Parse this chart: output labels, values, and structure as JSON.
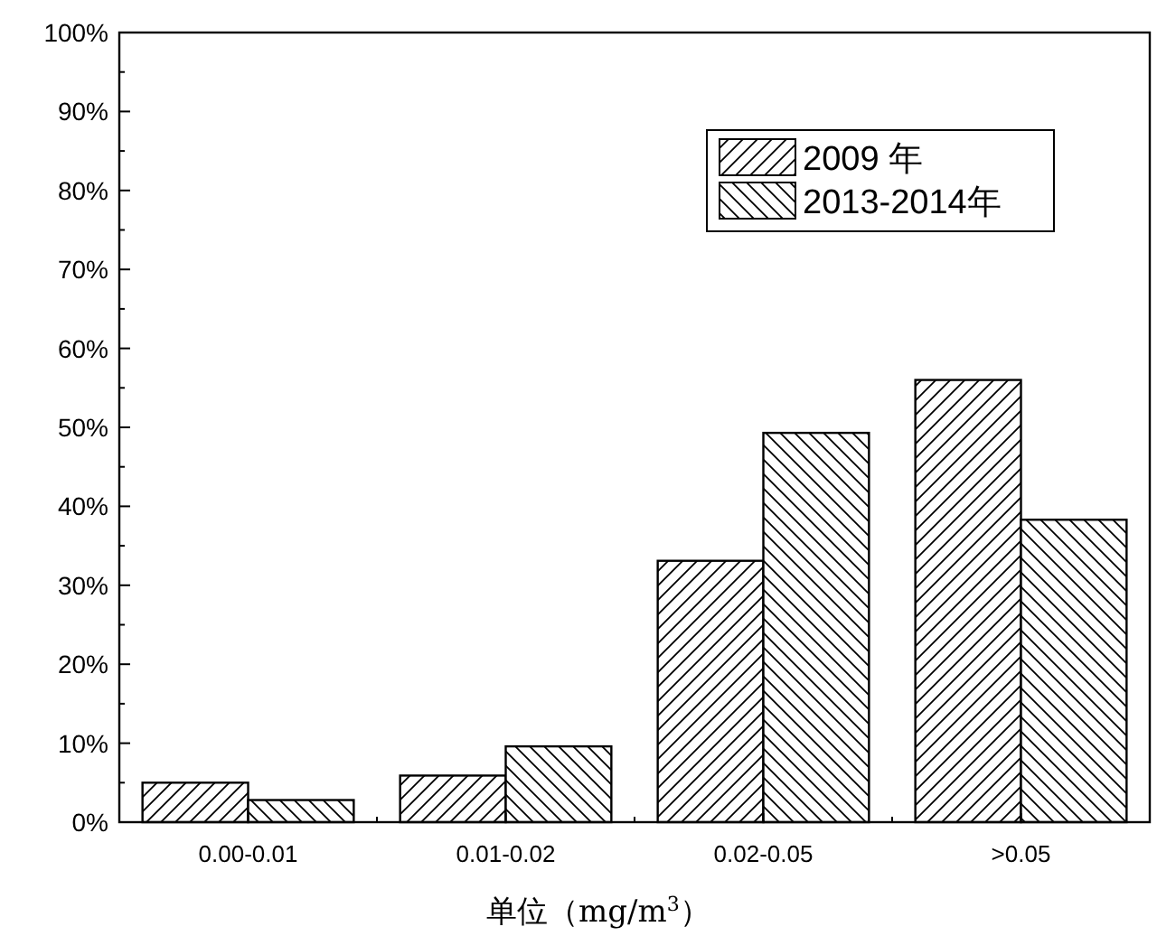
{
  "chart_data": {
    "type": "bar",
    "xlabel": "单位（mg/m$^{3}$）",
    "categories": [
      "0.00-0.01",
      "0.01-0.02",
      "0.02-0.05",
      ">0.05"
    ],
    "series": [
      {
        "name": "2009 年",
        "color": "#000000",
        "values": [
          5.0,
          5.9,
          33.1,
          56.0
        ]
      },
      {
        "name": "2013-2014年",
        "color": "#000000",
        "values": [
          2.8,
          9.6,
          49.3,
          38.3
        ]
      }
    ],
    "ylim": [
      0,
      100
    ],
    "yticks": [
      {
        "value": 0,
        "label": "0%"
      },
      {
        "value": 10,
        "label": "10%"
      },
      {
        "value": 20,
        "label": "20%"
      },
      {
        "value": 30,
        "label": "30%"
      },
      {
        "value": 40,
        "label": "40%"
      },
      {
        "value": 50,
        "label": "50%"
      },
      {
        "value": 60,
        "label": "60%"
      },
      {
        "value": 70,
        "label": "70%"
      },
      {
        "value": 80,
        "label": "80%"
      },
      {
        "value": 90,
        "label": "90%"
      },
      {
        "value": 100,
        "label": "100%"
      }
    ],
    "legend": "top right",
    "grid": false
  }
}
